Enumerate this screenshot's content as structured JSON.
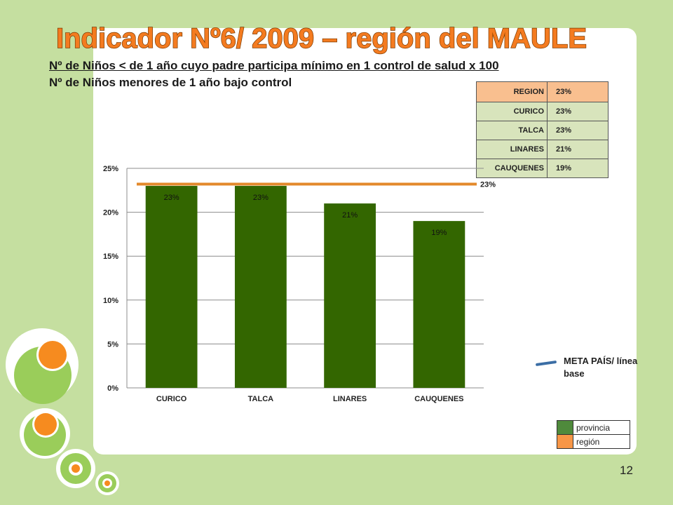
{
  "slide": {
    "title": "Indicador Nº6/ 2009 – región del MAULE",
    "formula_numerator": "Nº de Niños < de 1 año cuyo padre participa mínimo en 1 control de salud x 100",
    "formula_denominator": "Nº de Niños menores de 1  año bajo control",
    "page_number": "12"
  },
  "region_table": {
    "rows": [
      {
        "name": "REGION",
        "value": "23%"
      },
      {
        "name": "CURICO",
        "value": "23%"
      },
      {
        "name": "TALCA",
        "value": "23%"
      },
      {
        "name": "LINARES",
        "value": "21%"
      },
      {
        "name": "CAUQUENES",
        "value": "19%"
      }
    ]
  },
  "legend": {
    "meta_label": "META PAÍS/ línea base",
    "provincia": "provincia",
    "region": "región"
  },
  "colors": {
    "bar": "#336600",
    "region_line": "#e3892b",
    "provincia_swatch": "#4f8a3c",
    "region_swatch": "#f79646",
    "background": "#c5dfa0",
    "title": "#f47b20"
  },
  "chart_data": {
    "type": "bar",
    "categories": [
      "CURICO",
      "TALCA",
      "LINARES",
      "CAUQUENES"
    ],
    "series": [
      {
        "name": "provincia",
        "values": [
          23,
          23,
          21,
          19
        ],
        "labels": [
          "23%",
          "23%",
          "21%",
          "19%"
        ]
      }
    ],
    "reference_line": {
      "name": "región",
      "value": 23.2,
      "label": "23%"
    },
    "ylim": [
      0,
      25
    ],
    "yticks": [
      0,
      5,
      10,
      15,
      20,
      25
    ],
    "ytick_labels": [
      "0%",
      "5%",
      "10%",
      "15%",
      "20%",
      "25%"
    ],
    "grid": true,
    "legend_position": "bottom-right"
  }
}
